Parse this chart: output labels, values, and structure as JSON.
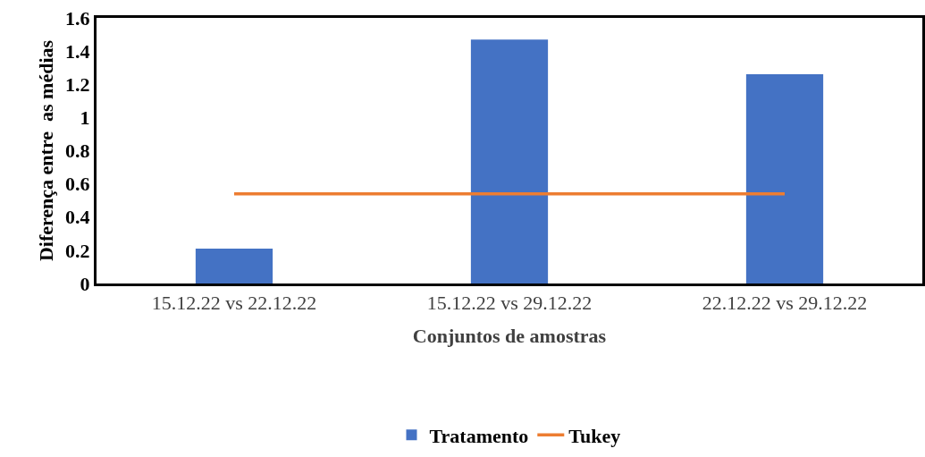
{
  "chart_data": {
    "type": "bar",
    "xlabel": "Conjuntos de amostras",
    "ylabel": "Diferença entre  as médias",
    "categories": [
      "15.12.22 vs 22.12.22",
      "15.12.22 vs 29.12.22",
      "22.12.22 vs 29.12.22"
    ],
    "series": [
      {
        "name": "Tratamento",
        "color": "#4472c4",
        "values": [
          0.21,
          1.47,
          1.26
        ]
      },
      {
        "name": "Tukey",
        "type": "line",
        "color": "#ed7d31",
        "values": [
          0.54,
          0.54,
          0.54
        ]
      }
    ],
    "ylim": [
      0,
      1.6
    ],
    "yticks": [
      0,
      0.2,
      0.4,
      0.6,
      0.8,
      1,
      1.2,
      1.4,
      1.6
    ],
    "grid": false,
    "legend": "bottom",
    "marker": "none",
    "line_style": "solid"
  }
}
